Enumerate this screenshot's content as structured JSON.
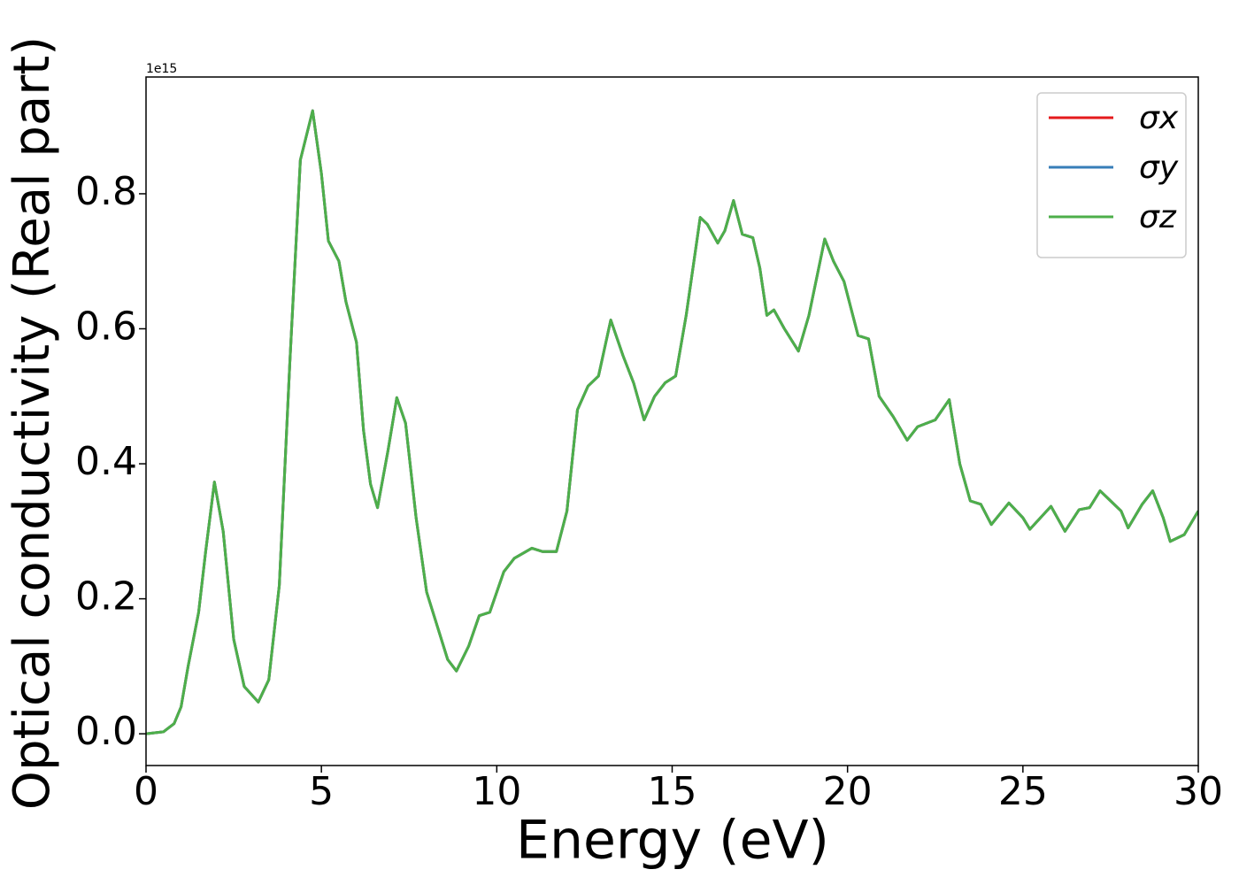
{
  "chart_data": {
    "type": "line",
    "xlabel": "Energy (eV)",
    "ylabel": "Optical conductivity (Real part)",
    "y_offset_label": "1e15",
    "xlim": [
      0,
      30
    ],
    "ylim": [
      -0.047,
      0.973
    ],
    "xticks": [
      0,
      5,
      10,
      15,
      20,
      25,
      30
    ],
    "yticks": [
      {
        "value": 0,
        "label": "0.0"
      },
      {
        "value": 0.2,
        "label": "0.2"
      },
      {
        "value": 0.4,
        "label": "0.4"
      },
      {
        "value": 0.6,
        "label": "0.6"
      },
      {
        "value": 0.8,
        "label": "0.8"
      }
    ],
    "legend": "upper right",
    "x": [
      0,
      0.5,
      0.8,
      1.0,
      1.2,
      1.5,
      1.7,
      1.95,
      2.2,
      2.5,
      2.8,
      3.2,
      3.5,
      3.8,
      4.1,
      4.4,
      4.75,
      5.0,
      5.2,
      5.5,
      5.7,
      6.0,
      6.2,
      6.4,
      6.6,
      6.9,
      7.15,
      7.4,
      7.7,
      8.0,
      8.3,
      8.6,
      8.85,
      9.2,
      9.5,
      9.8,
      10.2,
      10.5,
      11.0,
      11.3,
      11.7,
      12.0,
      12.3,
      12.6,
      12.9,
      13.25,
      13.6,
      13.9,
      14.2,
      14.5,
      14.8,
      15.1,
      15.4,
      15.8,
      16.0,
      16.3,
      16.5,
      16.75,
      17.0,
      17.3,
      17.5,
      17.7,
      17.9,
      18.2,
      18.6,
      18.9,
      19.35,
      19.6,
      19.9,
      20.3,
      20.6,
      20.9,
      21.3,
      21.7,
      22.0,
      22.5,
      22.9,
      23.2,
      23.5,
      23.8,
      24.1,
      24.6,
      25.0,
      25.2,
      25.8,
      26.2,
      26.6,
      26.9,
      27.2,
      27.5,
      27.8,
      28.0,
      28.4,
      28.7,
      29.0,
      29.2,
      29.6,
      30.0
    ],
    "series": [
      {
        "name": "σx",
        "color": "#e41a1c",
        "values": [
          0.0,
          0.003,
          0.015,
          0.04,
          0.1,
          0.18,
          0.27,
          0.373,
          0.3,
          0.14,
          0.07,
          0.047,
          0.08,
          0.22,
          0.55,
          0.85,
          0.923,
          0.83,
          0.73,
          0.7,
          0.64,
          0.58,
          0.45,
          0.37,
          0.335,
          0.42,
          0.498,
          0.46,
          0.32,
          0.21,
          0.16,
          0.11,
          0.093,
          0.13,
          0.175,
          0.18,
          0.24,
          0.26,
          0.275,
          0.27,
          0.27,
          0.33,
          0.48,
          0.515,
          0.53,
          0.613,
          0.56,
          0.52,
          0.465,
          0.5,
          0.52,
          0.53,
          0.62,
          0.765,
          0.755,
          0.727,
          0.745,
          0.79,
          0.74,
          0.735,
          0.69,
          0.62,
          0.628,
          0.6,
          0.567,
          0.62,
          0.733,
          0.7,
          0.67,
          0.59,
          0.585,
          0.5,
          0.47,
          0.435,
          0.455,
          0.465,
          0.495,
          0.4,
          0.345,
          0.34,
          0.31,
          0.342,
          0.32,
          0.303,
          0.337,
          0.3,
          0.332,
          0.335,
          0.36,
          0.345,
          0.33,
          0.305,
          0.34,
          0.36,
          0.32,
          0.285,
          0.295,
          0.33
        ]
      },
      {
        "name": "σy",
        "color": "#377eb8",
        "values": [
          0.0,
          0.003,
          0.015,
          0.04,
          0.1,
          0.18,
          0.27,
          0.373,
          0.3,
          0.14,
          0.07,
          0.047,
          0.08,
          0.22,
          0.55,
          0.85,
          0.923,
          0.83,
          0.73,
          0.7,
          0.64,
          0.58,
          0.45,
          0.37,
          0.335,
          0.42,
          0.498,
          0.46,
          0.32,
          0.21,
          0.16,
          0.11,
          0.093,
          0.13,
          0.175,
          0.18,
          0.24,
          0.26,
          0.275,
          0.27,
          0.27,
          0.33,
          0.48,
          0.515,
          0.53,
          0.613,
          0.56,
          0.52,
          0.465,
          0.5,
          0.52,
          0.53,
          0.62,
          0.765,
          0.755,
          0.727,
          0.745,
          0.79,
          0.74,
          0.735,
          0.69,
          0.62,
          0.628,
          0.6,
          0.567,
          0.62,
          0.733,
          0.7,
          0.67,
          0.59,
          0.585,
          0.5,
          0.47,
          0.435,
          0.455,
          0.465,
          0.495,
          0.4,
          0.345,
          0.34,
          0.31,
          0.342,
          0.32,
          0.303,
          0.337,
          0.3,
          0.332,
          0.335,
          0.36,
          0.345,
          0.33,
          0.305,
          0.34,
          0.36,
          0.32,
          0.285,
          0.295,
          0.33
        ]
      },
      {
        "name": "σz",
        "color": "#4daf4a",
        "values": [
          0.0,
          0.003,
          0.015,
          0.04,
          0.1,
          0.18,
          0.27,
          0.373,
          0.3,
          0.14,
          0.07,
          0.047,
          0.08,
          0.22,
          0.55,
          0.85,
          0.923,
          0.83,
          0.73,
          0.7,
          0.64,
          0.58,
          0.45,
          0.37,
          0.335,
          0.42,
          0.498,
          0.46,
          0.32,
          0.21,
          0.16,
          0.11,
          0.093,
          0.13,
          0.175,
          0.18,
          0.24,
          0.26,
          0.275,
          0.27,
          0.27,
          0.33,
          0.48,
          0.515,
          0.53,
          0.613,
          0.56,
          0.52,
          0.465,
          0.5,
          0.52,
          0.53,
          0.62,
          0.765,
          0.755,
          0.727,
          0.745,
          0.79,
          0.74,
          0.735,
          0.69,
          0.62,
          0.628,
          0.6,
          0.567,
          0.62,
          0.733,
          0.7,
          0.67,
          0.59,
          0.585,
          0.5,
          0.47,
          0.435,
          0.455,
          0.465,
          0.495,
          0.4,
          0.345,
          0.34,
          0.31,
          0.342,
          0.32,
          0.303,
          0.337,
          0.3,
          0.332,
          0.335,
          0.36,
          0.345,
          0.33,
          0.305,
          0.34,
          0.36,
          0.32,
          0.285,
          0.295,
          0.33
        ]
      }
    ]
  }
}
